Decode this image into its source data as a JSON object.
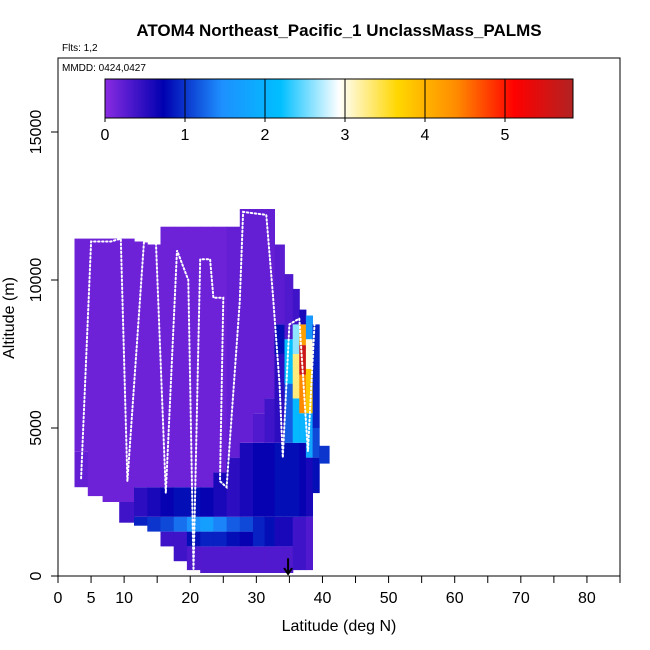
{
  "chart_data": {
    "type": "heatmap",
    "title": "ATOM4 Northeast_Pacific_1 UnclassMass_PALMS",
    "flights_label": "Flts: 1,2",
    "dates_label": "MMDD: 0424,0427",
    "xlabel": "Latitude (deg N)",
    "ylabel": "Altitude (m)",
    "xlim": [
      0,
      85
    ],
    "ylim": [
      0,
      17500
    ],
    "x_ticks": [
      0,
      5,
      10,
      20,
      30,
      40,
      50,
      60,
      70,
      80
    ],
    "y_ticks": [
      0,
      5000,
      10000,
      15000
    ],
    "colorbar": {
      "min": 0,
      "max": 5.85,
      "ticks": [
        0,
        1,
        2,
        3,
        4,
        5
      ],
      "colors": [
        "#8a2be2",
        "#0000b0",
        "#1e90ff",
        "#00bfff",
        "#ffffff",
        "#ffd700",
        "#ff8c00",
        "#ff0000",
        "#b22222"
      ]
    },
    "columns": [
      {
        "lat": 3.5,
        "cells": [
          [
            3000,
            4200,
            0.2
          ],
          [
            4200,
            11400,
            0.15
          ]
        ]
      },
      {
        "lat": 5.5,
        "cells": [
          [
            2700,
            11400,
            0.15
          ]
        ]
      },
      {
        "lat": 8.0,
        "cells": [
          [
            2500,
            11400,
            0.15
          ]
        ]
      },
      {
        "lat": 10.5,
        "cells": [
          [
            1800,
            2500,
            0.4
          ],
          [
            2500,
            11400,
            0.15
          ]
        ]
      },
      {
        "lat": 12.5,
        "cells": [
          [
            1700,
            2000,
            0.9
          ],
          [
            2000,
            3000,
            0.5
          ],
          [
            3000,
            11300,
            0.15
          ]
        ]
      },
      {
        "lat": 14.5,
        "cells": [
          [
            1500,
            2000,
            1.0
          ],
          [
            2000,
            3000,
            0.6
          ],
          [
            3000,
            11200,
            0.15
          ]
        ]
      },
      {
        "lat": 16.5,
        "cells": [
          [
            1000,
            1500,
            0.4
          ],
          [
            1500,
            2000,
            1.1
          ],
          [
            2000,
            3000,
            0.7
          ],
          [
            3000,
            11800,
            0.15
          ]
        ]
      },
      {
        "lat": 18.5,
        "cells": [
          [
            500,
            1500,
            0.4
          ],
          [
            1500,
            2000,
            1.3
          ],
          [
            2000,
            3000,
            0.8
          ],
          [
            3000,
            11800,
            0.15
          ]
        ]
      },
      {
        "lat": 20.5,
        "cells": [
          [
            200,
            1000,
            0.3
          ],
          [
            1000,
            1500,
            0.8
          ],
          [
            1500,
            2000,
            1.5
          ],
          [
            2000,
            3000,
            0.8
          ],
          [
            3000,
            11800,
            0.15
          ]
        ]
      },
      {
        "lat": 22.5,
        "cells": [
          [
            100,
            1000,
            0.3
          ],
          [
            1000,
            1500,
            0.9
          ],
          [
            1500,
            2000,
            1.7
          ],
          [
            2000,
            3000,
            0.7
          ],
          [
            3000,
            11800,
            0.15
          ]
        ]
      },
      {
        "lat": 24.5,
        "cells": [
          [
            100,
            1000,
            0.3
          ],
          [
            1000,
            1500,
            0.9
          ],
          [
            1500,
            2000,
            1.4
          ],
          [
            2000,
            3500,
            0.6
          ],
          [
            3500,
            11800,
            0.15
          ]
        ]
      },
      {
        "lat": 26.5,
        "cells": [
          [
            100,
            1000,
            0.3
          ],
          [
            1000,
            1500,
            0.8
          ],
          [
            1500,
            2000,
            1.2
          ],
          [
            2000,
            4000,
            0.5
          ],
          [
            4000,
            11800,
            0.2
          ]
        ]
      },
      {
        "lat": 28.5,
        "cells": [
          [
            100,
            1000,
            0.3
          ],
          [
            1000,
            1500,
            0.7
          ],
          [
            1500,
            2000,
            1.1
          ],
          [
            2000,
            4500,
            0.6
          ],
          [
            4500,
            12400,
            0.2
          ]
        ]
      },
      {
        "lat": 30.5,
        "cells": [
          [
            100,
            1000,
            0.3
          ],
          [
            1000,
            2000,
            0.9
          ],
          [
            2000,
            4500,
            0.7
          ],
          [
            4500,
            5500,
            0.3
          ],
          [
            5500,
            12400,
            0.2
          ]
        ]
      },
      {
        "lat": 32.0,
        "cells": [
          [
            100,
            1000,
            0.3
          ],
          [
            1000,
            2000,
            0.8
          ],
          [
            2000,
            4500,
            0.7
          ],
          [
            4500,
            6000,
            0.4
          ],
          [
            6000,
            12400,
            0.2
          ]
        ]
      },
      {
        "lat": 33.5,
        "cells": [
          [
            100,
            1000,
            0.3
          ],
          [
            1000,
            2000,
            0.6
          ],
          [
            2000,
            4500,
            0.8
          ],
          [
            4500,
            7500,
            0.5
          ],
          [
            7500,
            8500,
            0.8
          ],
          [
            8500,
            11200,
            0.25
          ]
        ]
      },
      {
        "lat": 35.0,
        "cells": [
          [
            100,
            1000,
            0.3
          ],
          [
            1000,
            2000,
            0.6
          ],
          [
            2000,
            4500,
            0.8
          ],
          [
            4500,
            6500,
            1.2
          ],
          [
            6500,
            8000,
            2.2
          ],
          [
            8000,
            10200,
            0.3
          ]
        ]
      },
      {
        "lat": 36.0,
        "cells": [
          [
            200,
            2000,
            0.4
          ],
          [
            2000,
            4500,
            0.8
          ],
          [
            4500,
            6000,
            2.1
          ],
          [
            6000,
            7500,
            3.3
          ],
          [
            7500,
            8500,
            2.6
          ],
          [
            8500,
            9700,
            0.4
          ]
        ]
      },
      {
        "lat": 37.0,
        "cells": [
          [
            200,
            2000,
            0.4
          ],
          [
            2000,
            4500,
            0.7
          ],
          [
            4500,
            5500,
            2.0
          ],
          [
            5500,
            6800,
            4.4
          ],
          [
            6800,
            7800,
            5.6
          ],
          [
            7800,
            8500,
            4.2
          ],
          [
            8500,
            9000,
            0.6
          ]
        ]
      },
      {
        "lat": 38.0,
        "cells": [
          [
            200,
            2000,
            0.3
          ],
          [
            2000,
            4000,
            0.6
          ],
          [
            4000,
            5500,
            1.8
          ],
          [
            5500,
            7000,
            3.8
          ],
          [
            7000,
            8000,
            3.0
          ],
          [
            8000,
            8800,
            1.6
          ]
        ]
      },
      {
        "lat": 39.0,
        "cells": [
          [
            2800,
            4000,
            0.8
          ],
          [
            4000,
            5000,
            1.1
          ],
          [
            5000,
            8500,
            0.9
          ]
        ]
      },
      {
        "lat": 40.0,
        "cells": [
          [
            3800,
            4400,
            1.0
          ]
        ]
      }
    ],
    "flight_track": [
      [
        3.5,
        3300
      ],
      [
        5.0,
        11300
      ],
      [
        8.0,
        11300
      ],
      [
        9.5,
        11400
      ],
      [
        10.5,
        3200
      ],
      [
        13.0,
        11300
      ],
      [
        14.8,
        11300
      ],
      [
        16.3,
        2800
      ],
      [
        18.0,
        11000
      ],
      [
        19.7,
        10000
      ],
      [
        20.5,
        200
      ],
      [
        21.5,
        10700
      ],
      [
        23.0,
        10700
      ],
      [
        23.5,
        9400
      ],
      [
        25.0,
        9400
      ],
      [
        24.5,
        3200
      ],
      [
        25.5,
        3000
      ],
      [
        27.5,
        9300
      ],
      [
        28.0,
        12300
      ],
      [
        31.5,
        12200
      ],
      [
        32.5,
        9500
      ],
      [
        33.5,
        6500
      ],
      [
        34.0,
        4000
      ],
      [
        35.0,
        8500
      ],
      [
        36.5,
        8700
      ],
      [
        37.8,
        4200
      ],
      [
        38.8,
        8500
      ]
    ],
    "marker": {
      "lat": 34.8,
      "alt_top": 600,
      "alt_bottom": 0
    }
  }
}
